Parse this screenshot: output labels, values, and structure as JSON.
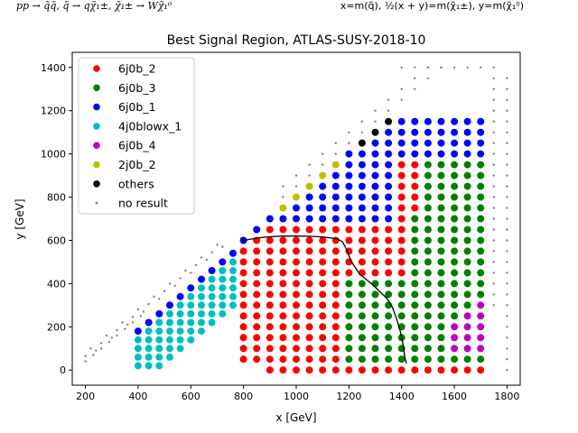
{
  "annotations": {
    "process": "pp → q̃q̃, q̃ → qχ̃₁±, χ̃₁± → Wχ̃₁⁰",
    "axes_definition": "x=m(q̃), ½(x + y)=m(χ̃₁±), y=m(χ̃₁⁰)"
  },
  "chart_data": {
    "type": "scatter",
    "title": "Best Signal Region, ATLAS-SUSY-2018-10",
    "xlabel": "x [GeV]",
    "ylabel": "y [GeV]",
    "xlim": [
      150,
      1850
    ],
    "ylim": [
      -70,
      1470
    ],
    "xticks": [
      200,
      400,
      600,
      800,
      1000,
      1200,
      1400,
      1600,
      1800
    ],
    "yticks": [
      0,
      200,
      400,
      600,
      800,
      1000,
      1200,
      1400
    ],
    "legend_position": "upper-left",
    "series": [
      {
        "name": "6j0b_2",
        "color": "#ff0000"
      },
      {
        "name": "6j0b_3",
        "color": "#008000"
      },
      {
        "name": "6j0b_1",
        "color": "#0000ff"
      },
      {
        "name": "4j0blowx_1",
        "color": "#00bfbf"
      },
      {
        "name": "6j0b_4",
        "color": "#bf00bf"
      },
      {
        "name": "2j0b_2",
        "color": "#bfbf00"
      },
      {
        "name": "others",
        "color": "#000000"
      },
      {
        "name": "no result",
        "color": "#808080"
      }
    ],
    "exclusion_contour": [
      [
        790,
        612
      ],
      [
        800,
        598
      ],
      [
        820,
        604
      ],
      [
        860,
        612
      ],
      [
        900,
        617
      ],
      [
        950,
        620
      ],
      [
        1000,
        620
      ],
      [
        1050,
        619
      ],
      [
        1100,
        616
      ],
      [
        1150,
        608
      ],
      [
        1175,
        595
      ],
      [
        1190,
        560
      ],
      [
        1210,
        500
      ],
      [
        1240,
        445
      ],
      [
        1290,
        395
      ],
      [
        1320,
        360
      ],
      [
        1345,
        330
      ],
      [
        1365,
        290
      ],
      [
        1380,
        240
      ],
      [
        1395,
        180
      ],
      [
        1405,
        120
      ],
      [
        1412,
        60
      ],
      [
        1418,
        30
      ]
    ]
  }
}
